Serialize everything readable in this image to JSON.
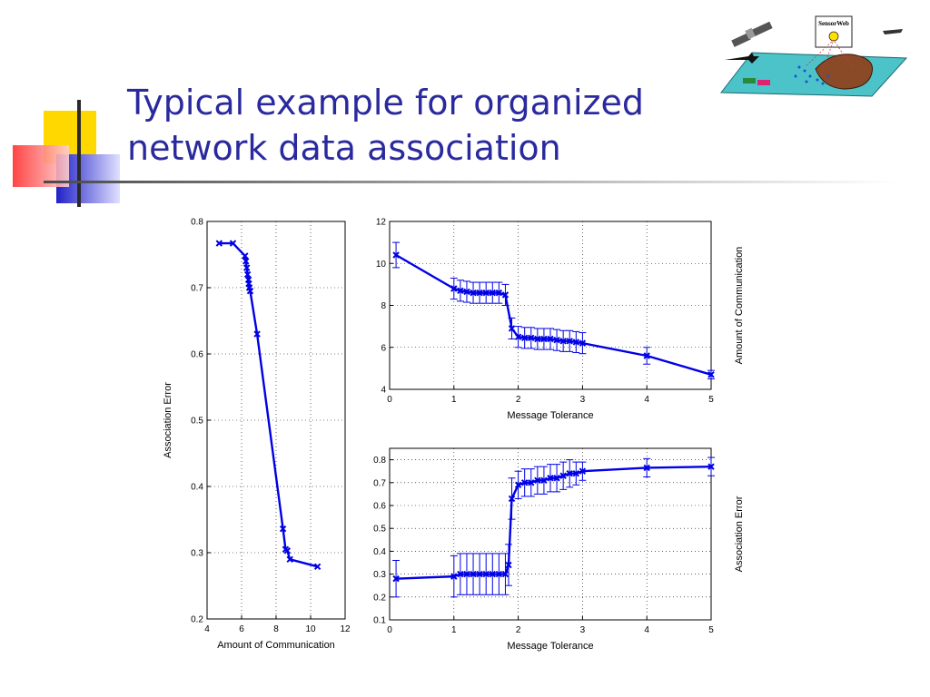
{
  "slide": {
    "title_line1": "Typical example for organized",
    "title_line2": "network data association",
    "logo_caption": "SensorWeb"
  },
  "colors": {
    "title": "#2a2a9e",
    "series": "#0000e6",
    "accent_yellow": "#ffd800",
    "accent_red": "#ff4040",
    "accent_blue": "#3030d0"
  },
  "chart_data": [
    {
      "type": "line",
      "xlabel": "Amount of Communication",
      "ylabel": "Association Error",
      "xlim": [
        4,
        12
      ],
      "ylim": [
        0.2,
        0.8
      ],
      "xticks": [
        4,
        6,
        8,
        10,
        12
      ],
      "yticks": [
        0.2,
        0.3,
        0.4,
        0.5,
        0.6,
        0.7,
        0.8
      ],
      "grid": true,
      "series": [
        {
          "x": [
            4.7,
            5.5,
            6.2,
            6.25,
            6.3,
            6.35,
            6.4,
            6.42,
            6.45,
            6.5,
            6.9,
            8.4,
            8.55,
            8.65,
            8.8,
            10.4
          ],
          "y": [
            0.767,
            0.767,
            0.748,
            0.74,
            0.73,
            0.72,
            0.712,
            0.706,
            0.7,
            0.695,
            0.63,
            0.336,
            0.305,
            0.303,
            0.29,
            0.279
          ]
        }
      ]
    },
    {
      "type": "line",
      "xlabel": "Message Tolerance",
      "ylabel": "Amount of Communication",
      "xlim": [
        0,
        5
      ],
      "ylim": [
        4,
        12
      ],
      "xticks": [
        0,
        1,
        2,
        3,
        4,
        5
      ],
      "yticks": [
        4,
        6,
        8,
        10,
        12
      ],
      "grid": true,
      "series": [
        {
          "x": [
            0.1,
            1.0,
            1.1,
            1.2,
            1.3,
            1.4,
            1.5,
            1.6,
            1.7,
            1.8,
            1.9,
            2.0,
            2.1,
            2.2,
            2.3,
            2.4,
            2.5,
            2.6,
            2.7,
            2.8,
            2.9,
            3.0,
            4.0,
            5.0
          ],
          "y": [
            10.4,
            8.8,
            8.7,
            8.65,
            8.6,
            8.6,
            8.6,
            8.6,
            8.6,
            8.5,
            6.9,
            6.5,
            6.45,
            6.45,
            6.4,
            6.4,
            6.4,
            6.35,
            6.3,
            6.3,
            6.25,
            6.2,
            5.6,
            4.7
          ],
          "err": [
            0.6,
            0.5,
            0.5,
            0.5,
            0.5,
            0.5,
            0.5,
            0.5,
            0.5,
            0.5,
            0.5,
            0.5,
            0.5,
            0.5,
            0.5,
            0.5,
            0.5,
            0.5,
            0.5,
            0.5,
            0.5,
            0.5,
            0.4,
            0.2
          ]
        }
      ]
    },
    {
      "type": "line",
      "xlabel": "Message Tolerance",
      "ylabel": "Association Error",
      "xlim": [
        0,
        5
      ],
      "ylim": [
        0.1,
        0.85
      ],
      "xticks": [
        0,
        1,
        2,
        3,
        4,
        5
      ],
      "yticks": [
        0.1,
        0.2,
        0.3,
        0.4,
        0.5,
        0.6,
        0.7,
        0.8
      ],
      "grid": true,
      "series": [
        {
          "x": [
            0.1,
            1.0,
            1.1,
            1.2,
            1.3,
            1.4,
            1.5,
            1.6,
            1.7,
            1.8,
            1.85,
            1.9,
            2.0,
            2.1,
            2.2,
            2.3,
            2.4,
            2.5,
            2.6,
            2.7,
            2.8,
            2.9,
            3.0,
            4.0,
            5.0
          ],
          "y": [
            0.28,
            0.29,
            0.3,
            0.3,
            0.3,
            0.3,
            0.3,
            0.3,
            0.3,
            0.3,
            0.34,
            0.63,
            0.69,
            0.7,
            0.7,
            0.71,
            0.71,
            0.72,
            0.72,
            0.73,
            0.74,
            0.74,
            0.75,
            0.765,
            0.77
          ],
          "err": [
            0.08,
            0.09,
            0.09,
            0.09,
            0.09,
            0.09,
            0.09,
            0.09,
            0.09,
            0.09,
            0.09,
            0.09,
            0.06,
            0.06,
            0.06,
            0.06,
            0.06,
            0.06,
            0.06,
            0.06,
            0.06,
            0.05,
            0.04,
            0.04,
            0.04
          ]
        }
      ]
    }
  ]
}
